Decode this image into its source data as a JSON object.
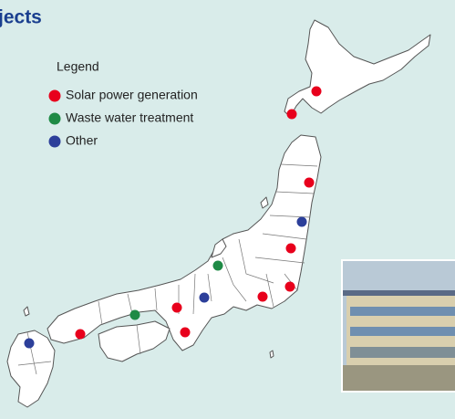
{
  "header": {
    "title": "jects"
  },
  "legend": {
    "title": "Legend",
    "items": [
      {
        "label": "Solar power generation",
        "color": "#e8001c"
      },
      {
        "label": "Waste water treatment",
        "color": "#1e8a45"
      },
      {
        "label": "Other",
        "color": "#2c3f9a"
      }
    ]
  }
}
